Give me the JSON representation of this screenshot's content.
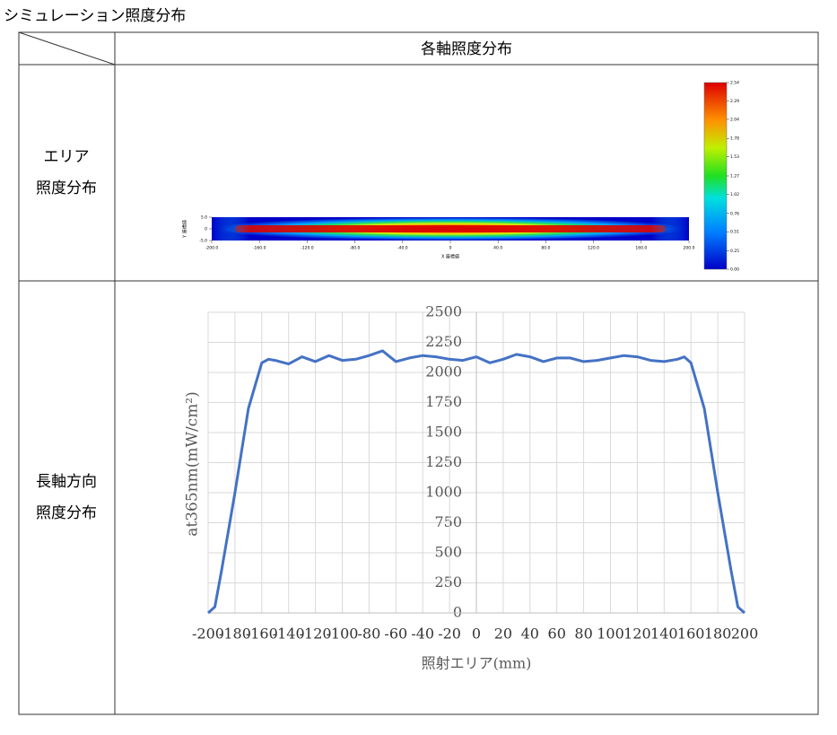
{
  "title": "シミュレーション照度分布",
  "table": {
    "header": "各軸照度分布",
    "rows": [
      {
        "label": [
          "エリア",
          "照度分布"
        ]
      },
      {
        "label": [
          "長軸方向",
          "照度分布"
        ]
      }
    ]
  },
  "chart_data": [
    {
      "type": "heatmap",
      "xlabel": "X 座標値",
      "ylabel": "Y 座標値",
      "xlim": [
        -200,
        200
      ],
      "xticks": [
        {
          "value": -200,
          "label": "-200.0"
        },
        {
          "value": -160,
          "label": "-160.0"
        },
        {
          "value": -120,
          "label": "-120.0"
        },
        {
          "value": -80,
          "label": "-80.0"
        },
        {
          "value": -40,
          "label": "-40.0"
        },
        0,
        {
          "value": 40,
          "label": "40.0"
        },
        {
          "value": 80,
          "label": "80.0"
        },
        {
          "value": 120,
          "label": "120.0"
        },
        {
          "value": 160,
          "label": "160.0"
        },
        {
          "value": 200,
          "label": "200.0"
        }
      ],
      "ylim": [
        -5,
        5
      ],
      "yticks": [
        {
          "value": 5,
          "label": "5.0"
        },
        0,
        {
          "value": -5,
          "label": "-5.0"
        }
      ],
      "colorbar_lim": [
        0,
        2.54
      ],
      "colorbar_ticks": [
        2.54,
        2.29,
        2.04,
        1.78,
        1.53,
        1.27,
        1.02,
        0.76,
        0.51,
        0.25,
        {
          "value": 0,
          "label": "0.00"
        }
      ]
    },
    {
      "type": "line",
      "xlabel": "照射エリア(mm)",
      "ylabel": "at365nm(mW/cm²)",
      "x": [
        -200,
        -195,
        -190,
        -180,
        -170,
        -160,
        -155,
        -150,
        -140,
        -130,
        -120,
        -110,
        -100,
        -90,
        -80,
        -70,
        -60,
        -50,
        -40,
        -30,
        -20,
        -10,
        0,
        10,
        20,
        30,
        40,
        50,
        60,
        70,
        80,
        90,
        100,
        110,
        120,
        130,
        140,
        150,
        155,
        160,
        170,
        180,
        190,
        195,
        200
      ],
      "series": [
        {
          "color": "#4472c4",
          "values": [
            0,
            50,
            350,
            1000,
            1700,
            2080,
            2110,
            2100,
            2070,
            2130,
            2090,
            2140,
            2100,
            2110,
            2140,
            2180,
            2090,
            2120,
            2140,
            2130,
            2110,
            2100,
            2130,
            2080,
            2110,
            2150,
            2130,
            2090,
            2120,
            2120,
            2090,
            2100,
            2120,
            2140,
            2130,
            2100,
            2090,
            2110,
            2130,
            2080,
            1700,
            1000,
            350,
            50,
            0
          ]
        }
      ],
      "xlim": [
        -200,
        200
      ],
      "xticks": [
        -200,
        -180,
        -160,
        -140,
        -120,
        -100,
        -80,
        -60,
        -40,
        -20,
        0,
        20,
        40,
        60,
        80,
        100,
        120,
        140,
        160,
        180,
        200
      ],
      "ylim": [
        0,
        2500
      ],
      "yticks": [
        0,
        250,
        500,
        750,
        1000,
        1250,
        1500,
        1750,
        2000,
        2250,
        2500
      ],
      "grid": true
    }
  ]
}
